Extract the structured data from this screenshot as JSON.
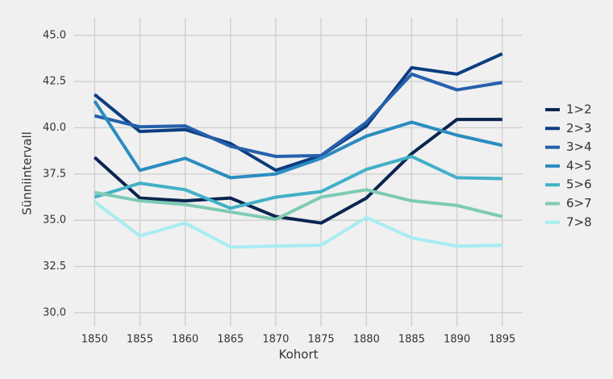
{
  "chart_data": {
    "type": "line",
    "x": [
      1850,
      1855,
      1860,
      1865,
      1870,
      1875,
      1880,
      1885,
      1890,
      1895
    ],
    "xlabel": "Kohort",
    "ylabel": "Sünniintervall",
    "xlim": [
      1847.75,
      1897.25
    ],
    "ylim": [
      29.25,
      45.95
    ],
    "xticks": [
      1850,
      1855,
      1860,
      1865,
      1870,
      1875,
      1880,
      1885,
      1890,
      1895
    ],
    "yticks": [
      {
        "value": 30,
        "label": "30.0"
      },
      32.5,
      {
        "value": 35,
        "label": "35.0"
      },
      37.5,
      {
        "value": 40,
        "label": "40.0"
      },
      42.5,
      {
        "value": 45,
        "label": "45.0"
      }
    ],
    "grid": true,
    "legend": "right",
    "series": [
      {
        "name": "1>2",
        "color": "#0a2550",
        "values": [
          38.4,
          36.2,
          36.05,
          36.2,
          35.2,
          34.85,
          36.2,
          38.6,
          40.45,
          40.45
        ]
      },
      {
        "name": "2>3",
        "color": "#0b3d80",
        "values": [
          41.8,
          39.8,
          39.9,
          39.15,
          37.7,
          38.5,
          40.1,
          43.25,
          42.9,
          44.0
        ]
      },
      {
        "name": "3>4",
        "color": "#2560ac",
        "values": [
          40.65,
          40.05,
          40.1,
          39.0,
          38.45,
          38.5,
          40.3,
          42.9,
          42.05,
          42.45
        ]
      },
      {
        "name": "4>5",
        "color": "#2a8cc0",
        "values": [
          41.45,
          37.7,
          38.35,
          37.3,
          37.5,
          38.35,
          39.55,
          40.3,
          39.6,
          39.05
        ]
      },
      {
        "name": "5>6",
        "color": "#42b0c6",
        "values": [
          36.25,
          37.0,
          36.65,
          35.65,
          36.25,
          36.55,
          37.75,
          38.45,
          37.3,
          37.25
        ]
      },
      {
        "name": "6>7",
        "color": "#7ecbb4",
        "values": [
          36.5,
          36.05,
          35.85,
          35.45,
          35.05,
          36.25,
          36.65,
          36.05,
          35.8,
          35.2
        ]
      },
      {
        "name": "7>8",
        "color": "#a8ecf2",
        "values": [
          36.0,
          34.15,
          34.85,
          33.55,
          33.6,
          33.65,
          35.15,
          34.05,
          33.6,
          33.65
        ]
      }
    ]
  }
}
